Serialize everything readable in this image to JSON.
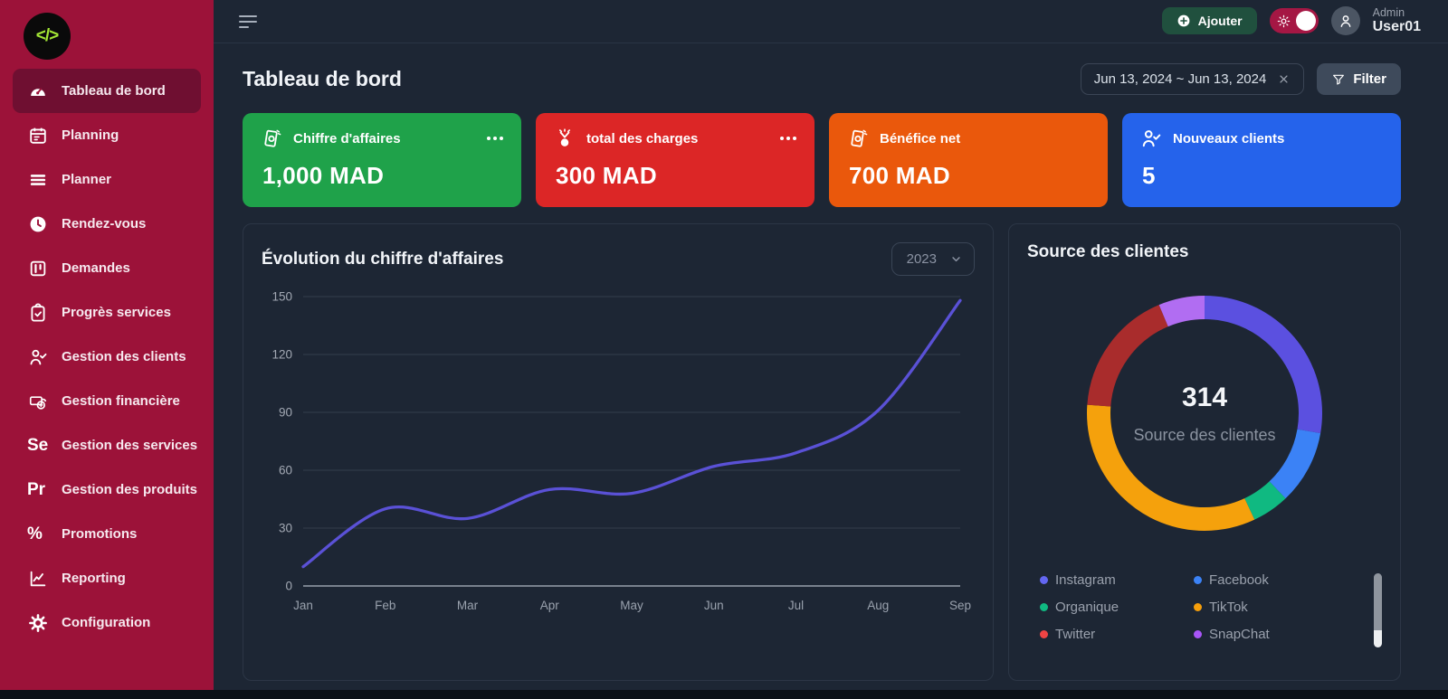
{
  "sidebar": {
    "logo_glyph": "</>",
    "items": [
      {
        "label": "Tableau de bord",
        "icon": "gauge-icon",
        "active": true
      },
      {
        "label": "Planning",
        "icon": "calendar-icon",
        "active": false
      },
      {
        "label": "Planner",
        "icon": "rows-icon",
        "active": false
      },
      {
        "label": "Rendez-vous",
        "icon": "clock-icon",
        "active": false
      },
      {
        "label": "Demandes",
        "icon": "kanban-icon",
        "active": false
      },
      {
        "label": "Progrès services",
        "icon": "clipboard-check-icon",
        "active": false
      },
      {
        "label": "Gestion des clients",
        "icon": "user-check-icon",
        "active": false
      },
      {
        "label": "Gestion financière",
        "icon": "money-icon",
        "active": false
      },
      {
        "label": "Gestion des services",
        "icon": "se-text-icon",
        "active": false
      },
      {
        "label": "Gestion des produits",
        "icon": "pr-text-icon",
        "active": false
      },
      {
        "label": "Promotions",
        "icon": "percent-icon",
        "active": false
      },
      {
        "label": "Reporting",
        "icon": "chart-line-icon",
        "active": false
      },
      {
        "label": "Configuration",
        "icon": "gear-icon",
        "active": false
      }
    ]
  },
  "topbar": {
    "add_label": "Ajouter",
    "user_role": "Admin",
    "user_name": "User01"
  },
  "page": {
    "title": "Tableau de bord",
    "date_range": "Jun 13, 2024 ~ Jun 13, 2024",
    "filter_label": "Filter"
  },
  "stat_cards": [
    {
      "label": "Chiffre d'affaires",
      "value": "1,000 MAD",
      "color": "#1fa24a",
      "icon": "money-bills-icon",
      "menu_dots": true
    },
    {
      "label": "total des charges",
      "value": "300 MAD",
      "color": "#dc2626",
      "icon": "money-fly-icon",
      "menu_dots": true
    },
    {
      "label": "Bénéfice net",
      "value": "700 MAD",
      "color": "#ea580c",
      "icon": "money-bills-icon",
      "menu_dots": false
    },
    {
      "label": "Nouveaux clients",
      "value": "5",
      "color": "#2563eb",
      "icon": "user-check-icon",
      "menu_dots": false
    }
  ],
  "chart_data": [
    {
      "type": "line",
      "title": "Évolution du chiffre d'affaires",
      "year_selected": "2023",
      "x": [
        "Jan",
        "Feb",
        "Mar",
        "Apr",
        "May",
        "Jun",
        "Jul",
        "Aug",
        "Sep"
      ],
      "series": [
        {
          "name": "Chiffre d'affaires",
          "values": [
            10,
            40,
            35,
            50,
            48,
            62,
            69,
            91,
            148
          ]
        }
      ],
      "ylim": [
        0,
        150
      ],
      "yticks": [
        0,
        30,
        60,
        90,
        120,
        150
      ],
      "line_color": "#5a51d6",
      "grid": true,
      "legend_position": "none"
    },
    {
      "type": "pie",
      "donut": true,
      "title": "Source des clientes",
      "center_value": "314",
      "center_label": "Source des clientes",
      "total": 314,
      "segments": [
        {
          "label": "Instagram",
          "value": 87,
          "color": "#5b50e0",
          "legend_dot": "#6366f1"
        },
        {
          "label": "Facebook",
          "value": 32,
          "color": "#3b82f6",
          "legend_dot": "#3b82f6"
        },
        {
          "label": "Organique",
          "value": 16,
          "color": "#10b981",
          "legend_dot": "#10b981"
        },
        {
          "label": "TikTok",
          "value": 104,
          "color": "#f5a10c",
          "legend_dot": "#f59e0b"
        },
        {
          "label": "Twitter",
          "value": 55,
          "color": "#a92c2c",
          "legend_dot": "#ef4444"
        },
        {
          "label": "SnapChat",
          "value": 20,
          "color": "#b16df2",
          "legend_dot": "#a855f7"
        }
      ]
    }
  ],
  "theme": {
    "sidebar_bg": "#9c1239",
    "sidebar_active_bg": "#6f0f31",
    "page_bg": "#1d2634",
    "card_border": "#2c3646",
    "add_button_bg": "#20503e",
    "toggle_bg": "#a51744",
    "line_color": "#5a51d6"
  }
}
